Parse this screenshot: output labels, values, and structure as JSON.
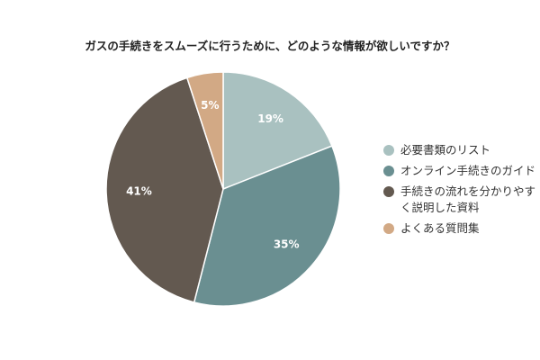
{
  "chart_data": {
    "type": "pie",
    "title": "ガスの手続きをスムーズに行うために、どのような情報が欲しいですか？",
    "categories": [
      "必要書類のリスト",
      "オンライン手続きのガイド",
      "手続きの流れを分かりやすく説明した資料",
      "よくある質問集"
    ],
    "values": [
      19,
      35,
      41,
      5
    ],
    "value_labels": [
      "19%",
      "35%",
      "41%",
      "5%"
    ],
    "colors": [
      "#a9c1c0",
      "#6a8f91",
      "#635950",
      "#d2a985"
    ],
    "legend": "right"
  }
}
